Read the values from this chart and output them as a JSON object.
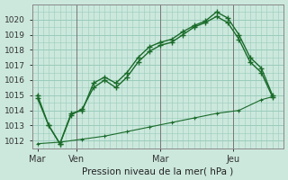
{
  "xlabel": "Pression niveau de la mer( hPa )",
  "background_color": "#cce8dd",
  "grid_color": "#99ccbb",
  "line_color": "#1a6b2a",
  "ylim": [
    1011.5,
    1021.0
  ],
  "xlim": [
    -0.5,
    22
  ],
  "yticks": [
    1012,
    1013,
    1014,
    1015,
    1016,
    1017,
    1018,
    1019,
    1020
  ],
  "xtick_labels": [
    "Mar",
    "Ven",
    "Mar",
    "Jeu"
  ],
  "xtick_positions": [
    0,
    3.5,
    11,
    17.5
  ],
  "vlines": [
    3.5,
    11,
    17.5
  ],
  "line1_x": [
    0,
    1,
    2,
    3,
    4,
    5,
    6,
    7,
    8,
    9,
    10,
    11,
    12,
    13,
    14,
    15,
    16,
    17,
    18,
    19,
    20,
    21
  ],
  "line1_y": [
    1015.0,
    1013.0,
    1011.8,
    1013.8,
    1014.0,
    1015.8,
    1016.2,
    1015.8,
    1016.5,
    1017.5,
    1018.2,
    1018.5,
    1018.7,
    1019.2,
    1019.6,
    1019.9,
    1020.5,
    1020.1,
    1019.0,
    1017.5,
    1016.8,
    1015.0
  ],
  "line2_x": [
    0,
    1,
    2,
    3,
    4,
    5,
    6,
    7,
    8,
    9,
    10,
    11,
    12,
    13,
    14,
    15,
    16,
    17,
    18,
    19,
    20,
    21
  ],
  "line2_y": [
    1014.8,
    1013.0,
    1011.8,
    1013.7,
    1014.1,
    1015.5,
    1016.0,
    1015.5,
    1016.2,
    1017.2,
    1017.9,
    1018.3,
    1018.5,
    1019.0,
    1019.5,
    1019.8,
    1020.2,
    1019.8,
    1018.7,
    1017.2,
    1016.5,
    1014.9
  ],
  "line3_x": [
    0,
    2,
    4,
    6,
    8,
    10,
    12,
    14,
    16,
    18,
    20,
    21
  ],
  "line3_y": [
    1011.8,
    1011.9,
    1012.1,
    1012.3,
    1012.6,
    1012.9,
    1013.2,
    1013.5,
    1013.8,
    1014.0,
    1014.7,
    1014.9
  ]
}
